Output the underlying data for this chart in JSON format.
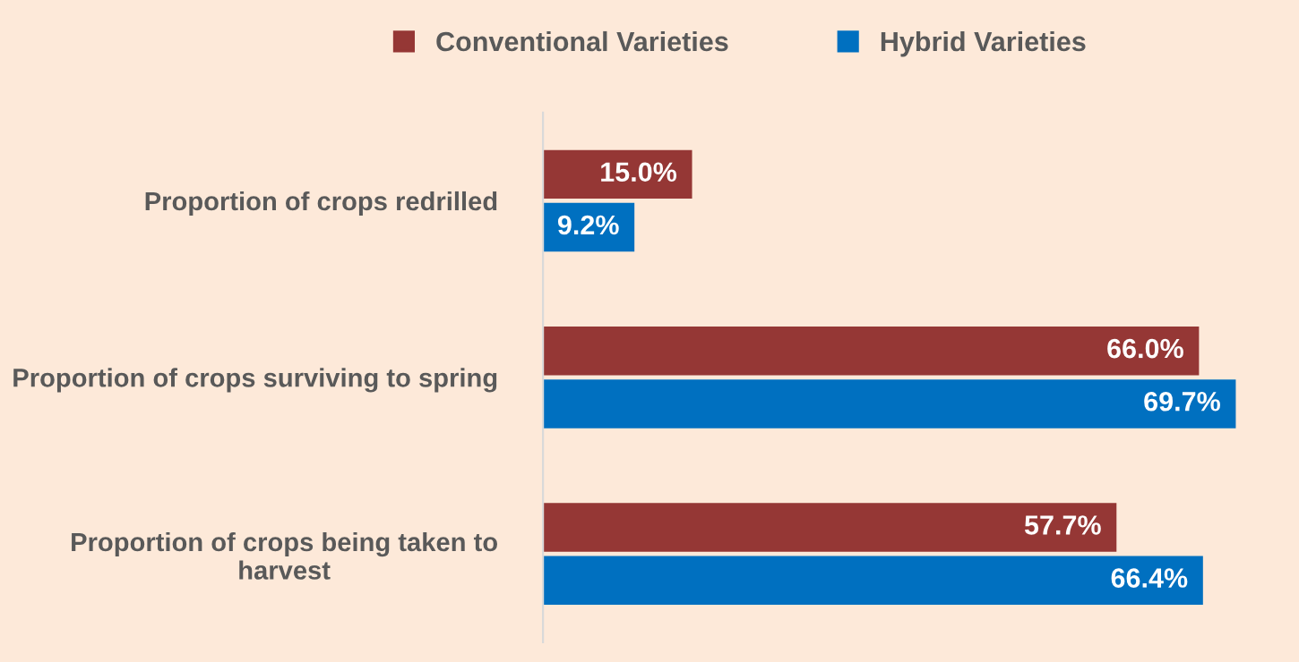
{
  "chart_data": {
    "type": "bar",
    "orientation": "horizontal",
    "categories": [
      "Proportion of crops redrilled",
      "Proportion of crops surviving to spring",
      "Proportion of crops being taken to\nharvest"
    ],
    "series": [
      {
        "name": "Conventional Varieties",
        "color": "#953735",
        "values": [
          15.0,
          66.0,
          57.7
        ],
        "value_labels": [
          "15.0%",
          "66.0%",
          "57.7%"
        ]
      },
      {
        "name": "Hybrid Varieties",
        "color": "#0070c0",
        "values": [
          9.2,
          69.7,
          66.4
        ],
        "value_labels": [
          "9.2%",
          "69.7%",
          "66.4%"
        ]
      }
    ],
    "tick_labels": "y",
    "legend": "top",
    "grid": false
  }
}
